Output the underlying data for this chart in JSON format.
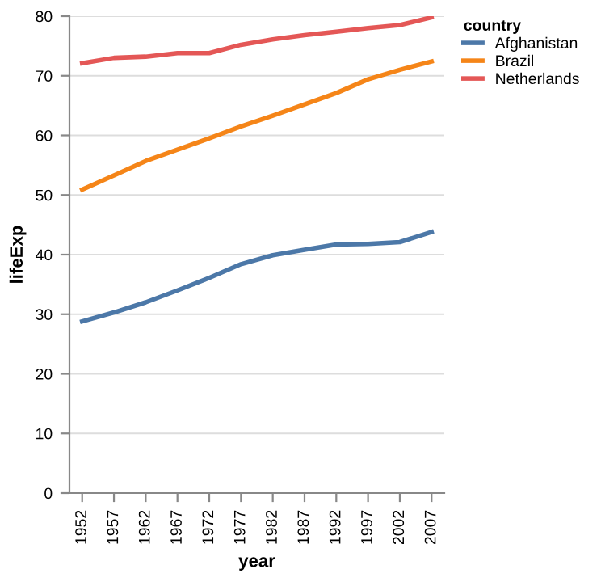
{
  "chart_data": {
    "type": "line",
    "xlabel": "year",
    "ylabel": "lifeExp",
    "legend_title": "country",
    "legend": "right",
    "grid": "y",
    "marker": "none",
    "line_style": "solid",
    "categories": [
      "1952",
      "1957",
      "1962",
      "1967",
      "1972",
      "1977",
      "1982",
      "1987",
      "1992",
      "1997",
      "2002",
      "2007"
    ],
    "ylim": [
      0,
      80
    ],
    "yticks": [
      0,
      10,
      20,
      30,
      40,
      50,
      60,
      70,
      80
    ],
    "series": [
      {
        "name": "Afghanistan",
        "color": "#4c78a8",
        "values": [
          28.8,
          30.3,
          32.0,
          34.0,
          36.1,
          38.4,
          39.9,
          40.8,
          41.7,
          41.8,
          42.1,
          43.8
        ]
      },
      {
        "name": "Brazil",
        "color": "#f58518",
        "values": [
          50.9,
          53.3,
          55.7,
          57.6,
          59.5,
          61.5,
          63.3,
          65.2,
          67.1,
          69.4,
          71.0,
          72.4
        ]
      },
      {
        "name": "Netherlands",
        "color": "#e45756",
        "values": [
          72.1,
          73.0,
          73.2,
          73.8,
          73.8,
          75.2,
          76.1,
          76.8,
          77.4,
          78.0,
          78.5,
          79.8
        ]
      }
    ]
  }
}
